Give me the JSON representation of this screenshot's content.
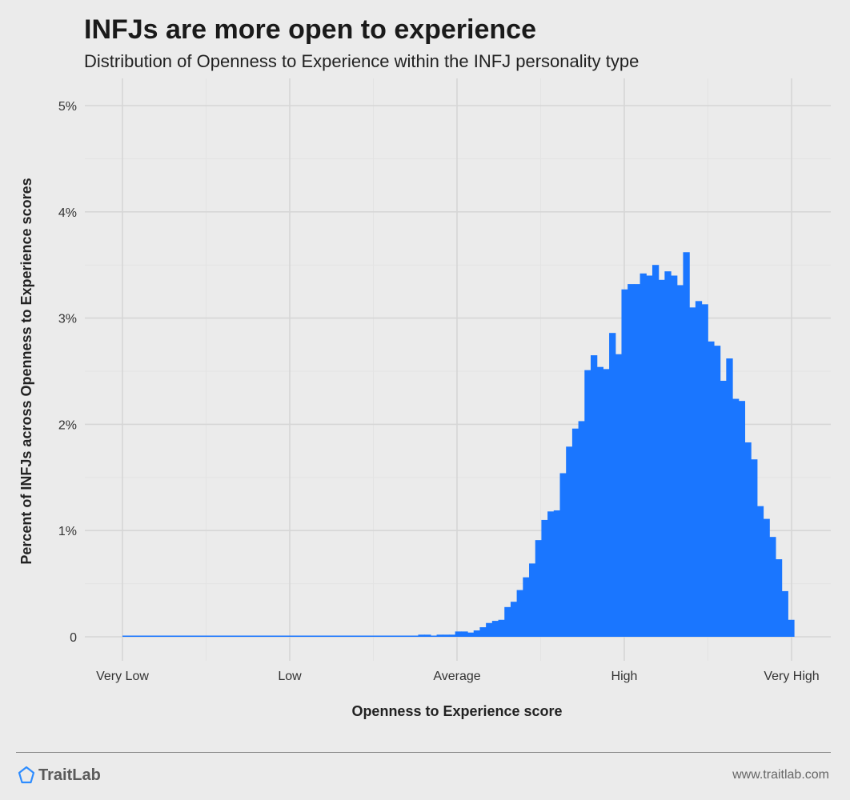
{
  "title": "INFJs are more open to experience",
  "subtitle": "Distribution of Openness to Experience within the INFJ personality type",
  "footer": {
    "brand": "TraitLab",
    "url": "www.traitlab.com"
  },
  "colors": {
    "background": "#ebebeb",
    "bar": "#1a76ff",
    "grid": "#d6d6d6",
    "brand_icon": "#2d8cff"
  },
  "chart_data": {
    "type": "bar",
    "title": "INFJs are more open to experience",
    "subtitle": "Distribution of Openness to Experience within the INFJ personality type",
    "xlabel": "Openness to Experience score",
    "ylabel": "Percent of INFJs across Openness to Experience scores",
    "x_tick_labels": [
      "Very Low",
      "Low",
      "Average",
      "High",
      "Very High"
    ],
    "y_tick_labels": [
      "0",
      "1%",
      "2%",
      "3%",
      "4%",
      "5%"
    ],
    "ylim": [
      0,
      5
    ],
    "grid": true,
    "values": [
      0.01,
      0.01,
      0.01,
      0.01,
      0.01,
      0.01,
      0.01,
      0.01,
      0.01,
      0.01,
      0.01,
      0.01,
      0.01,
      0.01,
      0.01,
      0.01,
      0.01,
      0.01,
      0.01,
      0.01,
      0.01,
      0.01,
      0.01,
      0.01,
      0.01,
      0.01,
      0.01,
      0.01,
      0.01,
      0.01,
      0.01,
      0.01,
      0.01,
      0.01,
      0.01,
      0.01,
      0.01,
      0.01,
      0.01,
      0.01,
      0.01,
      0.01,
      0.01,
      0.01,
      0.01,
      0.01,
      0.01,
      0.01,
      0.02,
      0.02,
      0.01,
      0.02,
      0.02,
      0.02,
      0.05,
      0.05,
      0.04,
      0.06,
      0.09,
      0.13,
      0.15,
      0.16,
      0.28,
      0.33,
      0.44,
      0.56,
      0.69,
      0.91,
      1.1,
      1.18,
      1.19,
      1.54,
      1.79,
      1.96,
      2.03,
      2.51,
      2.65,
      2.54,
      2.52,
      2.86,
      2.66,
      3.27,
      3.32,
      3.32,
      3.42,
      3.4,
      3.5,
      3.36,
      3.44,
      3.4,
      3.31,
      3.62,
      3.1,
      3.16,
      3.13,
      2.78,
      2.74,
      2.41,
      2.62,
      2.24,
      2.22,
      1.83,
      1.67,
      1.23,
      1.11,
      0.94,
      0.73,
      0.43,
      0.16
    ]
  }
}
